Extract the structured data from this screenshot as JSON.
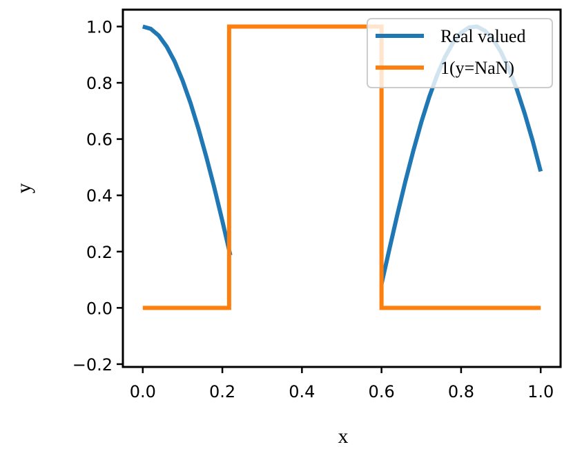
{
  "chart_data": {
    "type": "line",
    "title": "",
    "xlabel": "x",
    "ylabel": "y",
    "xlim": [
      -0.05,
      1.05
    ],
    "ylim": [
      -0.21,
      1.06
    ],
    "xticks": [
      0.0,
      0.2,
      0.4,
      0.6,
      0.8,
      1.0
    ],
    "xtick_labels": [
      "0.0",
      "0.2",
      "0.4",
      "0.6",
      "0.8",
      "1.0"
    ],
    "yticks": [
      -0.2,
      0.0,
      0.2,
      0.4,
      0.6,
      0.8,
      1.0
    ],
    "ytick_labels": [
      "−0.2",
      "0.0",
      "0.2",
      "0.4",
      "0.6",
      "0.8",
      "1.0"
    ],
    "grid": false,
    "legend_position": "top-right",
    "series": [
      {
        "name": "Real valued",
        "color": "#1f77b4",
        "segments": [
          {
            "x": [
              0.0,
              0.02,
              0.04,
              0.06,
              0.08,
              0.1,
              0.12,
              0.14,
              0.16,
              0.18,
              0.2,
              0.22
            ],
            "y": [
              1.0,
              0.992,
              0.968,
              0.929,
              0.876,
              0.808,
              0.728,
              0.636,
              0.535,
              0.426,
              0.309,
              0.187
            ]
          },
          {
            "x": [
              0.6,
              0.62,
              0.64,
              0.66,
              0.68,
              0.7,
              0.72,
              0.74,
              0.76,
              0.78,
              0.8,
              0.82,
              0.84,
              0.86,
              0.88,
              0.9,
              0.92,
              0.94,
              0.96,
              0.98,
              1.0
            ],
            "y": [
              0.085,
              0.21,
              0.333,
              0.45,
              0.559,
              0.66,
              0.75,
              0.828,
              0.893,
              0.943,
              0.978,
              0.997,
              1.0,
              0.985,
              0.955,
              0.91,
              0.85,
              0.777,
              0.69,
              0.593,
              0.485
            ]
          }
        ]
      },
      {
        "name": "1(y=NaN)",
        "color": "#ff7f0e",
        "x": [
          0.0,
          0.217,
          0.217,
          0.6,
          0.6,
          1.0
        ],
        "y": [
          0,
          0,
          1,
          1,
          0,
          0
        ]
      }
    ]
  }
}
